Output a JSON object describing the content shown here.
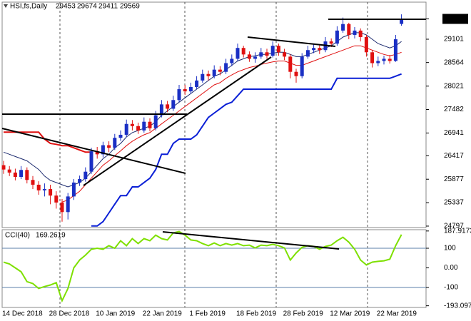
{
  "chart_data": [
    {
      "type": "candlestick",
      "title": "HSI,fs,Daily",
      "categories": [
        "14 Dec 2018",
        null,
        null,
        null,
        null,
        null,
        null,
        null,
        "28 Dec 2018",
        null,
        null,
        null,
        null,
        null,
        null,
        null,
        "10 Jan 2019",
        null,
        null,
        null,
        null,
        null,
        null,
        null,
        "22 Jan 2019",
        null,
        null,
        null,
        null,
        null,
        null,
        null,
        "1 Feb 2019",
        null,
        null,
        null,
        null,
        null,
        null,
        null,
        "18 Feb 2019",
        null,
        null,
        null,
        null,
        null,
        null,
        null,
        "28 Feb 2019",
        null,
        null,
        null,
        null,
        null,
        null,
        null,
        "12 Mar 2019",
        null,
        null,
        null,
        null,
        null,
        null,
        null,
        "22 Mar 2019",
        null,
        null,
        null,
        null
      ],
      "open": [
        26200,
        26100,
        26030,
        25930,
        26090,
        25860,
        25750,
        25620,
        25650,
        25500,
        25340,
        25120,
        25480,
        25800,
        25880,
        26050,
        26520,
        26450,
        26660,
        26600,
        26830,
        26900,
        27150,
        27100,
        27000,
        27200,
        27050,
        27350,
        27600,
        27500,
        27700,
        27950,
        27900,
        28000,
        28150,
        28300,
        28250,
        28400,
        28350,
        28550,
        28650,
        28900,
        28750,
        28650,
        28700,
        28800,
        28720,
        28950,
        28800,
        28700,
        28350,
        28250,
        28700,
        28850,
        28900,
        28850,
        29050,
        29000,
        29300,
        29450,
        29200,
        29300,
        29150,
        28800,
        28550,
        28600,
        28650,
        28600,
        29453
      ],
      "high": [
        26300,
        26180,
        26120,
        26180,
        26150,
        25950,
        25830,
        25780,
        25750,
        25600,
        25420,
        25560,
        25880,
        25960,
        26150,
        26600,
        26620,
        26740,
        26750,
        26920,
        27000,
        27250,
        27240,
        27180,
        27300,
        27280,
        27450,
        27700,
        27680,
        27800,
        28050,
        28050,
        28100,
        28250,
        28400,
        28380,
        28500,
        28480,
        28650,
        28750,
        29000,
        28950,
        28820,
        28800,
        28900,
        28880,
        29050,
        29000,
        28880,
        28750,
        28420,
        28780,
        28950,
        29000,
        28980,
        29150,
        29120,
        29400,
        29600,
        29480,
        29380,
        29350,
        29200,
        28850,
        28700,
        28720,
        28740,
        29200,
        29674
      ],
      "low": [
        26000,
        25950,
        25850,
        25880,
        25780,
        25650,
        25520,
        25480,
        25300,
        25200,
        24900,
        24950,
        25400,
        25720,
        25820,
        26000,
        26350,
        26380,
        26500,
        26550,
        26760,
        26850,
        27000,
        26920,
        26950,
        26980,
        27000,
        27300,
        27420,
        27450,
        27650,
        27820,
        27850,
        27950,
        28100,
        28150,
        28200,
        28270,
        28300,
        28480,
        28600,
        28680,
        28580,
        28560,
        28650,
        28650,
        28680,
        28720,
        28620,
        28200,
        28100,
        28200,
        28650,
        28780,
        28760,
        28800,
        28920,
        28950,
        29250,
        29100,
        29120,
        29050,
        28700,
        28450,
        28480,
        28520,
        28540,
        28580,
        29411
      ],
      "close": [
        26100,
        26030,
        25930,
        26090,
        25860,
        25750,
        25620,
        25650,
        25500,
        25340,
        25120,
        25480,
        25800,
        25880,
        26050,
        26520,
        26450,
        26660,
        26600,
        26830,
        26900,
        27150,
        27100,
        27000,
        27200,
        27050,
        27350,
        27600,
        27500,
        27700,
        27950,
        27900,
        28000,
        28150,
        28300,
        28250,
        28400,
        28350,
        28550,
        28650,
        28900,
        28750,
        28650,
        28700,
        28800,
        28720,
        28950,
        28800,
        28700,
        28350,
        28250,
        28700,
        28850,
        28900,
        28850,
        29050,
        29000,
        29300,
        29450,
        29200,
        29300,
        29150,
        28800,
        28550,
        28600,
        28650,
        28600,
        29100,
        29569
      ],
      "up_color": "#1a2fc4",
      "down_color": "#e01010",
      "series": [
        {
          "color": "#e01010",
          "width": 2,
          "values": [
            26960,
            26960,
            26960,
            26960,
            26960,
            26960,
            26960,
            26800,
            26700,
            26680,
            26650,
            26650,
            26600,
            26550,
            26500,
            26500,
            null,
            null,
            null,
            null,
            null,
            null,
            null,
            null,
            null,
            null,
            null,
            null,
            null,
            null,
            null,
            null,
            null,
            null,
            null,
            null,
            null,
            null,
            null,
            null,
            null,
            null,
            null,
            null,
            null,
            null,
            null,
            null,
            null,
            null,
            null,
            null,
            null,
            null,
            null,
            null,
            null,
            null,
            null,
            null,
            null,
            null,
            null,
            null,
            null,
            null,
            null,
            null,
            null
          ]
        },
        {
          "color": "#e01010",
          "width": 1,
          "values": [
            null,
            null,
            null,
            null,
            null,
            null,
            null,
            null,
            null,
            null,
            25350,
            25400,
            25500,
            25600,
            25750,
            25900,
            26050,
            26200,
            26300,
            26420,
            26530,
            26650,
            26750,
            26830,
            26900,
            26950,
            27050,
            27150,
            27250,
            27350,
            27450,
            27550,
            27650,
            27750,
            27850,
            27950,
            28050,
            28100,
            28200,
            28280,
            28350,
            28400,
            28450,
            28480,
            28520,
            28550,
            28580,
            28600,
            28600,
            28550,
            28500,
            28500,
            28550,
            28600,
            28650,
            28700,
            28750,
            28800,
            28850,
            28900,
            28950,
            28950,
            28900,
            28850,
            28800,
            28750,
            28720,
            28750,
            28800
          ]
        },
        {
          "color": "#1c2a6e",
          "width": 1,
          "values": [
            26500,
            26450,
            26400,
            26350,
            26300,
            26200,
            26100,
            25950,
            25850,
            25800,
            25750,
            25700,
            25750,
            25800,
            25900,
            26050,
            26200,
            26350,
            26450,
            26600,
            26700,
            26850,
            26950,
            27000,
            27050,
            27100,
            27200,
            27350,
            27450,
            27550,
            27650,
            27750,
            27850,
            27950,
            28050,
            28150,
            28250,
            28300,
            28400,
            28500,
            28600,
            28650,
            28700,
            28720,
            28750,
            28750,
            28780,
            28800,
            28800,
            28750,
            28700,
            28700,
            28750,
            28800,
            28850,
            28900,
            28950,
            29050,
            29150,
            29200,
            29250,
            29250,
            29200,
            29100,
            29000,
            28950,
            28900,
            28950,
            29050
          ]
        },
        {
          "color": "#0a1fd6",
          "width": 2,
          "values": [
            null,
            null,
            null,
            null,
            null,
            null,
            null,
            null,
            null,
            null,
            null,
            null,
            null,
            null,
            null,
            24800,
            24800,
            24900,
            25100,
            25300,
            25500,
            25500,
            25700,
            25700,
            25800,
            25900,
            26100,
            26450,
            26450,
            26700,
            26800,
            26800,
            26800,
            26900,
            27100,
            27300,
            27400,
            27500,
            27600,
            27650,
            27800,
            27950,
            27950,
            27950,
            27950,
            27950,
            27950,
            27950,
            27950,
            27950,
            27950,
            27950,
            27950,
            27950,
            27950,
            27950,
            27950,
            28200,
            28200,
            28200,
            28200,
            28200,
            28200,
            28200,
            28200,
            28200,
            28200,
            28250,
            28300
          ]
        }
      ],
      "ylim": [
        24780,
        29922
      ],
      "yticks": [
        29569,
        29101,
        28564,
        28021,
        27482,
        26941,
        26417,
        25877,
        25337,
        24797
      ]
    },
    {
      "type": "line",
      "title": "CCI(40)",
      "color": "#7ee000",
      "values": [
        29,
        20,
        0,
        -20,
        -70,
        -80,
        -105,
        -95,
        -87,
        -75,
        -167,
        -105,
        0,
        40,
        65,
        95,
        100,
        95,
        113,
        100,
        138,
        113,
        149,
        124,
        149,
        138,
        167,
        149,
        142,
        178,
        185,
        167,
        142,
        138,
        124,
        113,
        127,
        113,
        124,
        116,
        124,
        113,
        116,
        102,
        116,
        113,
        120,
        113,
        102,
        40,
        76,
        105,
        113,
        109,
        95,
        109,
        116,
        138,
        156,
        131,
        95,
        40,
        15,
        29,
        33,
        36,
        44,
        113,
        169.2619
      ],
      "levels": [
        100,
        -100
      ],
      "level_color": "#5b7fa8",
      "ylim": [
        -198,
        194.5
      ],
      "yticks": [
        187.9173,
        100,
        {
          "value": 0,
          "label": "0.00"
        },
        -100,
        -193.097
      ]
    }
  ]
}
